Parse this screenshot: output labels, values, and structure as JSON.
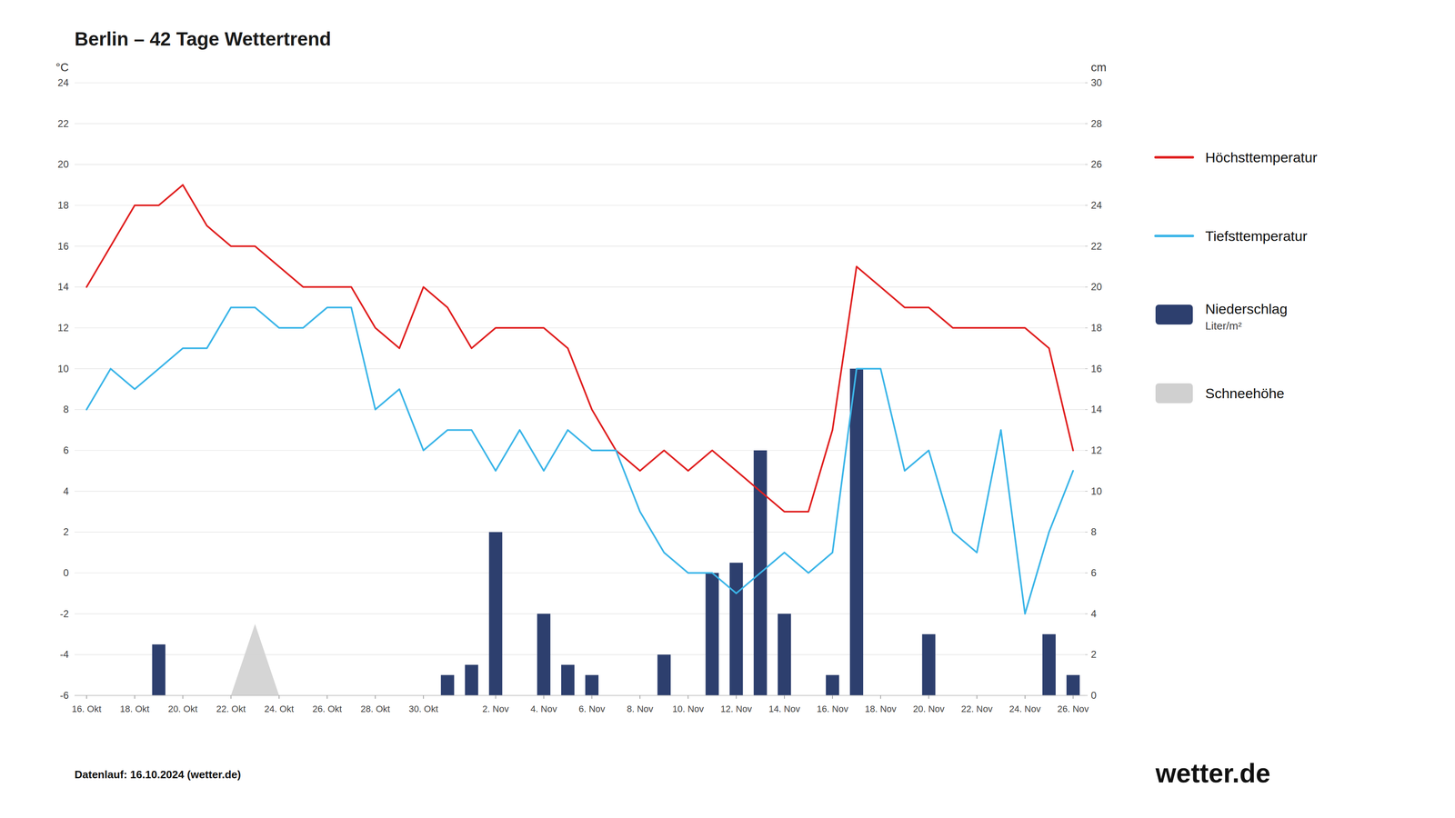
{
  "chart_data": {
    "type": "line",
    "title": "Berlin – 42 Tage Wettertrend",
    "ylabel": "°C",
    "y2label": "cm",
    "caption": "Datenlauf: 16.10.2024 (wetter.de)",
    "logo": "wetter.de",
    "x": [
      0,
      1,
      2,
      3,
      4,
      5,
      6,
      7,
      8,
      9,
      10,
      11,
      12,
      13,
      14,
      15,
      16,
      17,
      18,
      19,
      20,
      21,
      22,
      23,
      24,
      25,
      26,
      27,
      28,
      29,
      30,
      31,
      32,
      33,
      34,
      35,
      36,
      37,
      38,
      39,
      40,
      41
    ],
    "xlim": [
      -0.5,
      41.5
    ],
    "xticks": [
      {
        "value": 0,
        "label": "16. Okt"
      },
      {
        "value": 2,
        "label": "18. Okt"
      },
      {
        "value": 4,
        "label": "20. Okt"
      },
      {
        "value": 6,
        "label": "22. Okt"
      },
      {
        "value": 8,
        "label": "24. Okt"
      },
      {
        "value": 10,
        "label": "26. Okt"
      },
      {
        "value": 12,
        "label": "28. Okt"
      },
      {
        "value": 14,
        "label": "30. Okt"
      },
      {
        "value": 17,
        "label": "2. Nov"
      },
      {
        "value": 19,
        "label": "4. Nov"
      },
      {
        "value": 21,
        "label": "6. Nov"
      },
      {
        "value": 23,
        "label": "8. Nov"
      },
      {
        "value": 25,
        "label": "10. Nov"
      },
      {
        "value": 27,
        "label": "12. Nov"
      },
      {
        "value": 29,
        "label": "14. Nov"
      },
      {
        "value": 31,
        "label": "16. Nov"
      },
      {
        "value": 33,
        "label": "18. Nov"
      },
      {
        "value": 35,
        "label": "20. Nov"
      },
      {
        "value": 37,
        "label": "22. Nov"
      },
      {
        "value": 39,
        "label": "24. Nov"
      },
      {
        "value": 41,
        "label": "26. Nov"
      }
    ],
    "ylim": [
      -6,
      24
    ],
    "yticks": [
      -6,
      -4,
      -2,
      0,
      2,
      4,
      6,
      8,
      10,
      12,
      14,
      16,
      18,
      20,
      22,
      24
    ],
    "y2lim": [
      0,
      30
    ],
    "y2ticks": [
      0,
      2,
      4,
      6,
      8,
      10,
      12,
      14,
      16,
      18,
      20,
      22,
      24,
      26,
      28,
      30
    ],
    "grid": true,
    "legend": "right",
    "series": [
      {
        "name": "Höchsttemperatur",
        "type": "line",
        "color": "#e02020",
        "values": [
          14,
          16,
          18,
          18,
          19,
          17,
          16,
          16,
          15,
          14,
          14,
          14,
          12,
          11,
          14,
          13,
          11,
          12,
          12,
          12,
          11,
          8,
          6,
          5,
          6,
          5,
          6,
          5,
          4,
          3,
          3,
          7,
          15,
          14,
          13,
          13,
          12,
          12,
          12,
          12,
          11,
          6
        ]
      },
      {
        "name": "Tiefsttemperatur",
        "type": "line",
        "color": "#3bb5e8",
        "values": [
          8,
          10,
          9,
          10,
          11,
          11,
          13,
          13,
          12,
          12,
          13,
          13,
          8,
          9,
          6,
          7,
          7,
          5,
          7,
          5,
          7,
          6,
          6,
          3,
          1,
          0,
          0,
          -1,
          0,
          1,
          0,
          1,
          10,
          10,
          5,
          6,
          2,
          1,
          7,
          -2,
          2,
          5
        ]
      },
      {
        "name": "Niederschlag",
        "unit": "Liter/m²",
        "type": "bar",
        "axis": "y2",
        "color": "#2d3f6e",
        "values": [
          0,
          0,
          0,
          2.5,
          0,
          0,
          0,
          0,
          0,
          0,
          0,
          0,
          0,
          0,
          0,
          1,
          1.5,
          8,
          0,
          4,
          1.5,
          1,
          0,
          0,
          2,
          0,
          6,
          6.5,
          12,
          4,
          0,
          1,
          16,
          0,
          0,
          3,
          0,
          0,
          0,
          0,
          3,
          1
        ]
      },
      {
        "name": "Schneehöhe",
        "type": "area",
        "axis": "y2",
        "color": "#d0d0d0",
        "x": [
          6,
          7,
          8
        ],
        "values": [
          0,
          3.5,
          0
        ]
      }
    ]
  }
}
